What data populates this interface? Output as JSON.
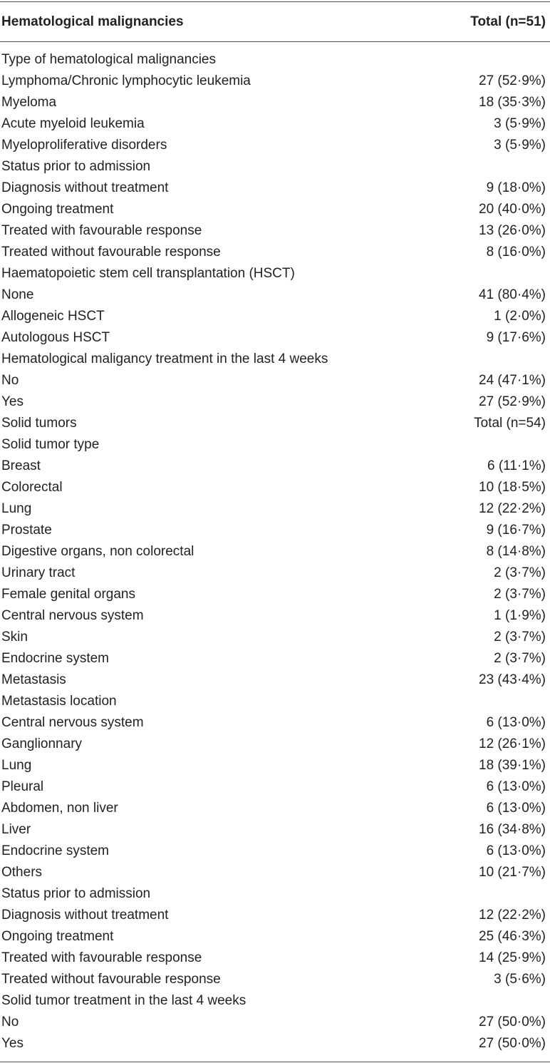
{
  "table": {
    "header": [
      "Hematological malignancies",
      "Total (n=51)"
    ],
    "rows": [
      [
        "Type of hematological malignancies"
      ],
      [
        "Lymphoma/Chronic lymphocytic leukemia",
        "27 (52·9%)"
      ],
      [
        "Myeloma",
        "18 (35·3%)"
      ],
      [
        "Acute myeloid leukemia",
        "3 (5·9%)"
      ],
      [
        "Myeloproliferative disorders",
        "3 (5·9%)"
      ],
      [
        "Status prior to admission"
      ],
      [
        "Diagnosis without treatment",
        "9 (18·0%)"
      ],
      [
        "Ongoing treatment",
        "20 (40·0%)"
      ],
      [
        "Treated with favourable response",
        "13 (26·0%)"
      ],
      [
        "Treated without favourable response",
        "8 (16·0%)"
      ],
      [
        "Haematopoietic stem cell transplantation (HSCT)"
      ],
      [
        "None",
        "41 (80·4%)"
      ],
      [
        "Allogeneic HSCT",
        "1 (2·0%)"
      ],
      [
        "Autologous HSCT",
        "9 (17·6%)"
      ],
      [
        "Hematological maligancy treatment in the last 4 weeks"
      ],
      [
        "No",
        "24 (47·1%)"
      ],
      [
        "Yes",
        "27 (52·9%)"
      ],
      [
        "Solid tumors",
        "Total (n=54)"
      ],
      [
        "Solid tumor type"
      ],
      [
        "Breast",
        "6 (11·1%)"
      ],
      [
        "Colorectal",
        "10 (18·5%)"
      ],
      [
        "Lung",
        "12 (22·2%)"
      ],
      [
        "Prostate",
        "9 (16·7%)"
      ],
      [
        "Digestive organs, non colorectal",
        "8 (14·8%)"
      ],
      [
        "Urinary tract",
        "2 (3·7%)"
      ],
      [
        "Female genital organs",
        "2 (3·7%)"
      ],
      [
        "Central nervous system",
        "1 (1·9%)"
      ],
      [
        "Skin",
        "2 (3·7%)"
      ],
      [
        "Endocrine system",
        "2 (3·7%)"
      ],
      [
        "Metastasis",
        "23 (43·4%)"
      ],
      [
        "Metastasis location"
      ],
      [
        "Central nervous system",
        "6 (13·0%)"
      ],
      [
        "Ganglionnary",
        "12 (26·1%)"
      ],
      [
        "Lung",
        "18 (39·1%)"
      ],
      [
        "Pleural",
        "6 (13·0%)"
      ],
      [
        "Abdomen, non liver",
        "6 (13·0%)"
      ],
      [
        "Liver",
        "16 (34·8%)"
      ],
      [
        "Endocrine system",
        "6 (13·0%)"
      ],
      [
        "Others",
        "10 (21·7%)"
      ],
      [
        "Status prior to admission"
      ],
      [
        "Diagnosis without treatment",
        "12 (22·2%)"
      ],
      [
        "Ongoing treatment",
        "25 (46·3%)"
      ],
      [
        "Treated with favourable response",
        "14 (25·9%)"
      ],
      [
        "Treated without favourable response",
        "3 (5·6%)"
      ],
      [
        "Solid tumor treatment in the last 4 weeks"
      ],
      [
        "No",
        "27 (50·0%)"
      ],
      [
        "Yes",
        "27 (50·0%)"
      ]
    ]
  }
}
